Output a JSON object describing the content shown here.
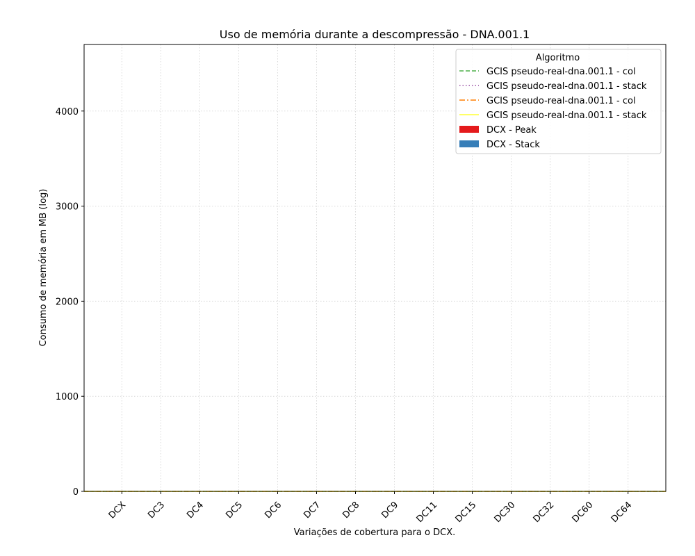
{
  "chart_data": {
    "type": "bar",
    "title": "Uso de memória durante a descompressão -  DNA.001.1",
    "xlabel": "Variações de cobertura para o DCX.",
    "ylabel": "Consumo de memória em MB (log)",
    "categories": [
      "DCX",
      "DC3",
      "DC4",
      "DC5",
      "DC6",
      "DC7",
      "DC8",
      "DC9",
      "DC11",
      "DC15",
      "DC30",
      "DC32",
      "DC60",
      "DC64"
    ],
    "ylim": [
      0,
      4700
    ],
    "yticks": [
      0,
      1000,
      2000,
      3000,
      4000
    ],
    "grid": true,
    "legend": {
      "title": "Algoritmo",
      "placement": "top-right"
    },
    "series": [
      {
        "name": "GCIS pseudo-real-dna.001.1 - col",
        "kind": "line",
        "style": "dashed",
        "color": "#4daf4a",
        "values": [
          0,
          0,
          0,
          0,
          0,
          0,
          0,
          0,
          0,
          0,
          0,
          0,
          0,
          0
        ]
      },
      {
        "name": "GCIS pseudo-real-dna.001.1 - stack",
        "kind": "line",
        "style": "dotted",
        "color": "#984ea3",
        "values": [
          0,
          0,
          0,
          0,
          0,
          0,
          0,
          0,
          0,
          0,
          0,
          0,
          0,
          0
        ]
      },
      {
        "name": "GCIS pseudo-real-dna.001.1 - col",
        "kind": "line",
        "style": "dashdot",
        "color": "#ff7f00",
        "values": [
          0,
          0,
          0,
          0,
          0,
          0,
          0,
          0,
          0,
          0,
          0,
          0,
          0,
          0
        ]
      },
      {
        "name": "GCIS pseudo-real-dna.001.1 - stack",
        "kind": "line",
        "style": "solid",
        "color": "#ffff33",
        "values": [
          0,
          0,
          0,
          0,
          0,
          0,
          0,
          0,
          0,
          0,
          0,
          0,
          0,
          0
        ]
      },
      {
        "name": "DCX - Peak",
        "kind": "bar",
        "color": "#e41a1c",
        "values": [
          0,
          0,
          0,
          0,
          0,
          0,
          0,
          0,
          0,
          0,
          0,
          0,
          0,
          0
        ]
      },
      {
        "name": "DCX - Stack",
        "kind": "bar",
        "color": "#377eb8",
        "values": [
          0,
          0,
          0,
          0,
          0,
          0,
          0,
          0,
          0,
          0,
          0,
          0,
          0,
          0
        ]
      }
    ]
  }
}
